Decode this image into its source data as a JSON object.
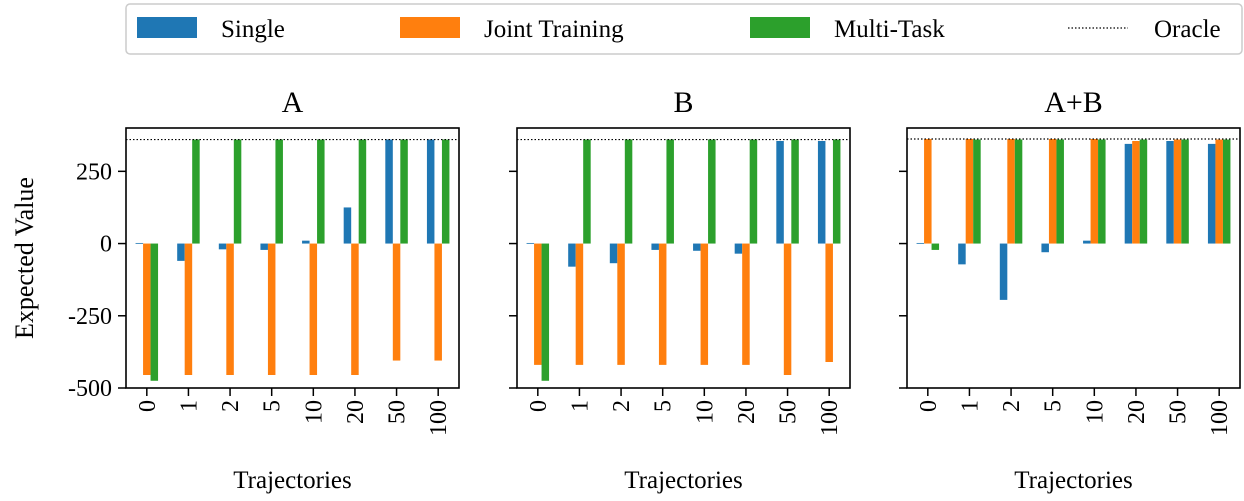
{
  "legend": {
    "placement": "top",
    "entries": [
      {
        "label": "Single",
        "color": "#1f77b4",
        "kind": "bar"
      },
      {
        "label": "Joint Training",
        "color": "#ff7f0e",
        "kind": "bar"
      },
      {
        "label": "Multi-Task",
        "color": "#2ca02c",
        "kind": "bar"
      },
      {
        "label": "Oracle",
        "color": "#000000",
        "kind": "dotted-line"
      }
    ]
  },
  "ylabel": "Expected Value",
  "chart_data": [
    {
      "type": "bar",
      "title": "A",
      "xlabel": "Trajectories",
      "ylabel": "Expected Value",
      "categories": [
        "0",
        "1",
        "2",
        "5",
        "10",
        "20",
        "50",
        "100"
      ],
      "ylim": [
        -500,
        400
      ],
      "yticks": [
        -500,
        -250,
        0,
        250
      ],
      "ytick_labels": [
        "-500",
        "-250",
        "0",
        "250"
      ],
      "oracle": 360,
      "series": [
        {
          "name": "Single",
          "color": "#1f77b4",
          "values": [
            2,
            -60,
            -20,
            -22,
            10,
            125,
            360,
            360
          ]
        },
        {
          "name": "Joint Training",
          "color": "#ff7f0e",
          "values": [
            -455,
            -455,
            -455,
            -455,
            -455,
            -455,
            -405,
            -405
          ]
        },
        {
          "name": "Multi-Task",
          "color": "#2ca02c",
          "values": [
            -475,
            360,
            360,
            360,
            360,
            360,
            360,
            360
          ]
        }
      ]
    },
    {
      "type": "bar",
      "title": "B",
      "xlabel": "Trajectories",
      "categories": [
        "0",
        "1",
        "2",
        "5",
        "10",
        "20",
        "50",
        "100"
      ],
      "ylim": [
        -500,
        400
      ],
      "oracle": 360,
      "series": [
        {
          "name": "Single",
          "color": "#1f77b4",
          "values": [
            2,
            -80,
            -68,
            -22,
            -25,
            -35,
            355,
            355
          ]
        },
        {
          "name": "Joint Training",
          "color": "#ff7f0e",
          "values": [
            -420,
            -420,
            -420,
            -420,
            -420,
            -420,
            -455,
            -410
          ]
        },
        {
          "name": "Multi-Task",
          "color": "#2ca02c",
          "values": [
            -475,
            360,
            360,
            360,
            360,
            360,
            360,
            360
          ]
        }
      ]
    },
    {
      "type": "bar",
      "title": "A+B",
      "xlabel": "Trajectories",
      "categories": [
        "0",
        "1",
        "2",
        "5",
        "10",
        "20",
        "50",
        "100"
      ],
      "ylim": [
        -500,
        400
      ],
      "oracle": 362,
      "series": [
        {
          "name": "Single",
          "color": "#1f77b4",
          "values": [
            2,
            -72,
            -195,
            -30,
            10,
            345,
            355,
            345
          ]
        },
        {
          "name": "Joint Training",
          "color": "#ff7f0e",
          "values": [
            362,
            362,
            362,
            362,
            362,
            355,
            360,
            360
          ]
        },
        {
          "name": "Multi-Task",
          "color": "#2ca02c",
          "values": [
            -22,
            360,
            360,
            360,
            360,
            360,
            360,
            360
          ]
        }
      ]
    }
  ]
}
